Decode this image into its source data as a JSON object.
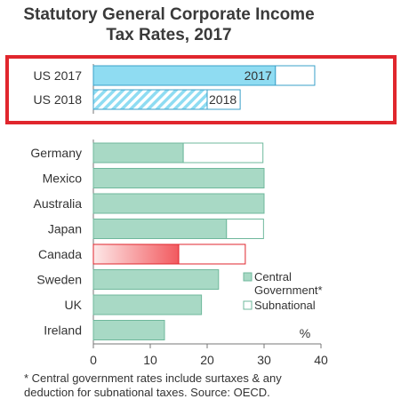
{
  "title_line1": "Statutory General Corporate Income",
  "title_line2": "Tax Rates, 2017",
  "footnote_line1": "* Central government rates include surtaxes & any",
  "footnote_line2": "deduction for subnational  taxes. Source: OECD.",
  "chart_data": {
    "type": "bar",
    "orientation": "horizontal",
    "stacked": true,
    "xlim": [
      0,
      40
    ],
    "xticks": [
      "0",
      "10",
      "20",
      "30",
      "40"
    ],
    "unit_label": "%",
    "legend": {
      "position": "right",
      "central_line1": "Central",
      "central_line2": "Government*",
      "subnational": "Subnational"
    },
    "highlight": {
      "categories": [
        "US 2017",
        "US 2018"
      ],
      "labels": [
        "2017",
        "2018"
      ],
      "total": [
        38.9,
        25.8
      ],
      "central": [
        32.0,
        20.0
      ],
      "frame_color": "#e0262d"
    },
    "categories": [
      "Germany",
      "Mexico",
      "Australia",
      "Japan",
      "Canada",
      "Sweden",
      "UK",
      "Ireland"
    ],
    "series": [
      {
        "name": "Central Government*",
        "values": [
          15.8,
          30.0,
          30.0,
          23.4,
          15.0,
          22.0,
          19.0,
          12.5
        ]
      },
      {
        "name": "Subnational",
        "values": [
          14.0,
          0.0,
          0.0,
          6.5,
          11.7,
          0.0,
          0.0,
          0.0
        ]
      }
    ],
    "colors": {
      "central": "#a8d9c5",
      "central_stroke": "#6fb89c",
      "us": "#8fdcf2",
      "us_stroke": "#3aa0c8",
      "canada_dark": "#f25a5f",
      "canada_light": "#fde8e8",
      "canada_stroke": "#e0262d"
    }
  }
}
